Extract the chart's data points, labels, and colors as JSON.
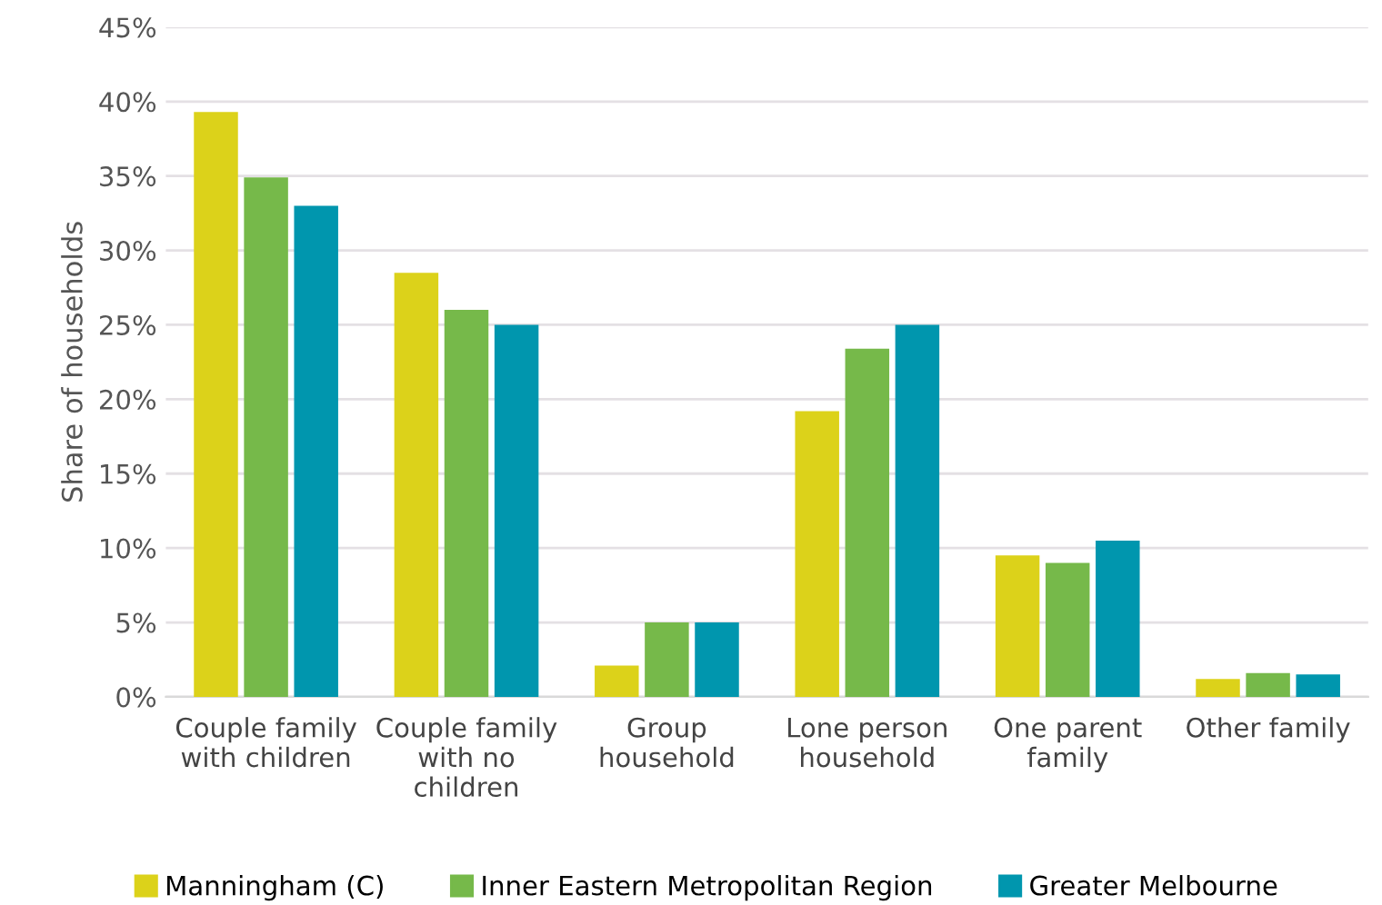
{
  "chart_data": {
    "type": "bar",
    "ylabel": "Share of households",
    "categories": [
      "Couple family\nwith children",
      "Couple family\nwith no\nchildren",
      "Group\nhousehold",
      "Lone person\nhousehold",
      "One parent\nfamily",
      "Other family"
    ],
    "series": [
      {
        "name": "Manningham (C)",
        "color": "#dcd21a",
        "values": [
          39.3,
          28.5,
          2.1,
          19.2,
          9.5,
          1.2
        ]
      },
      {
        "name": "Inner Eastern Metropolitan Region",
        "color": "#76b94a",
        "values": [
          34.9,
          26.0,
          5.0,
          23.4,
          9.0,
          1.6
        ]
      },
      {
        "name": "Greater Melbourne",
        "color": "#0096ae",
        "values": [
          33.0,
          25.0,
          5.0,
          25.0,
          10.5,
          1.5
        ]
      }
    ],
    "ylim": [
      0,
      45
    ],
    "yticks": [
      {
        "value": 0,
        "label": "0%"
      },
      {
        "value": 5,
        "label": "5%"
      },
      {
        "value": 10,
        "label": "10%"
      },
      {
        "value": 15,
        "label": "15%"
      },
      {
        "value": 20,
        "label": "20%"
      },
      {
        "value": 25,
        "label": "25%"
      },
      {
        "value": 30,
        "label": "30%"
      },
      {
        "value": 35,
        "label": "35%"
      },
      {
        "value": 40,
        "label": "40%"
      },
      {
        "value": 45,
        "label": "45%"
      }
    ],
    "grid": "y",
    "legend": "bottom"
  }
}
